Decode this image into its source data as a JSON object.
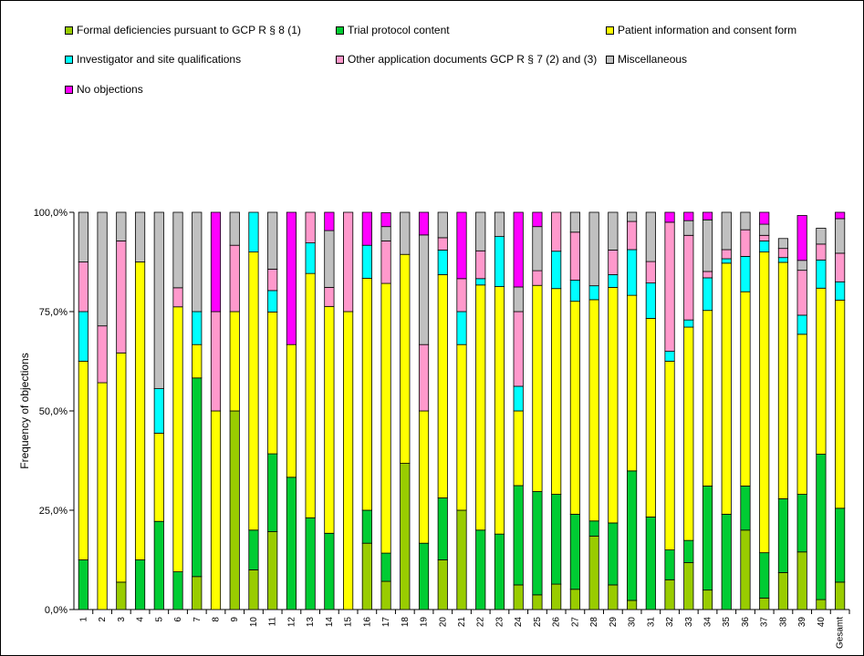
{
  "chart_data": {
    "type": "bar",
    "stacked": true,
    "normalized": true,
    "title": "",
    "xlabel": "",
    "ylabel": "Frequency of objections",
    "ylim": [
      0,
      100
    ],
    "yticks": [
      "0,0%",
      "25,0%",
      "50,0%",
      "75,0%",
      "100,0%"
    ],
    "legend_position": "top",
    "categories": [
      "1",
      "2",
      "3",
      "4",
      "5",
      "6",
      "7",
      "8",
      "9",
      "10",
      "11",
      "12",
      "13",
      "14",
      "15",
      "16",
      "17",
      "18",
      "19",
      "20",
      "21",
      "22",
      "23",
      "24",
      "25",
      "26",
      "27",
      "28",
      "29",
      "30",
      "31",
      "32",
      "33",
      "34",
      "35",
      "36",
      "37",
      "38",
      "39",
      "40",
      "Gesamt"
    ],
    "series": [
      {
        "name": "Formal deficiencies pursuant to GCP R § 8 (1)",
        "color": "#99CC00",
        "values": [
          0,
          0,
          6.9,
          0,
          0,
          0,
          8.3,
          0,
          50,
          10,
          19.6,
          0,
          0,
          0,
          0,
          16.7,
          7.1,
          36.8,
          0,
          12.5,
          25,
          0,
          0,
          6.2,
          3.7,
          6.4,
          5.1,
          18.5,
          6.2,
          2.3,
          0,
          7.5,
          11.8,
          4.9,
          0,
          20,
          2.9,
          9.3,
          14.5,
          2.5,
          6.9
        ]
      },
      {
        "name": "Trial protocol content",
        "color": "#00CC33",
        "values": [
          12.5,
          0,
          0,
          12.5,
          22.2,
          9.5,
          50,
          0,
          0,
          10,
          19.6,
          33.3,
          23.1,
          19.2,
          0,
          8.3,
          7.1,
          0,
          16.7,
          15.6,
          0,
          20,
          19,
          25,
          26,
          22.6,
          18.9,
          3.8,
          15.6,
          32.6,
          23.3,
          7.5,
          5.6,
          26.2,
          24,
          11.1,
          11.4,
          18.6,
          14.5,
          36.6,
          18.6
        ]
      },
      {
        "name": "Patient information and consent form",
        "color": "#FFFF00",
        "values": [
          50,
          57.1,
          57.7,
          75,
          22.2,
          66.7,
          8.4,
          50,
          25,
          70,
          35.7,
          33.4,
          61.5,
          57.1,
          75,
          58.4,
          67.9,
          52.6,
          33.3,
          56.2,
          41.7,
          61.7,
          62.3,
          18.8,
          51.9,
          51.8,
          53.6,
          55.7,
          59.3,
          44.2,
          50,
          47.5,
          53.7,
          44.2,
          63.2,
          48.9,
          75.7,
          59.5,
          40.3,
          41.8,
          52.4
        ]
      },
      {
        "name": "Investigator and site qualifications",
        "color": "#00FFFF",
        "values": [
          12.5,
          0,
          0,
          0,
          11.2,
          0,
          8.3,
          0,
          0,
          10,
          5.4,
          0,
          7.7,
          0,
          0,
          8.3,
          0,
          0,
          0,
          6.2,
          8.3,
          1.6,
          12.6,
          6.2,
          0,
          9.4,
          5.3,
          3.5,
          3.2,
          11.5,
          8.9,
          2.5,
          1.8,
          8.2,
          1.1,
          8.9,
          2.8,
          1.2,
          4.8,
          7.1,
          4.6
        ]
      },
      {
        "name": "Other application documents GCP R § 7 (2) and (3)",
        "color": "#FF99CC",
        "values": [
          12.5,
          14.3,
          28.2,
          0,
          0,
          4.8,
          0,
          25,
          16.7,
          0,
          5.4,
          0,
          7.7,
          4.8,
          25,
          0,
          10.7,
          0,
          16.7,
          3.1,
          8.3,
          7,
          0,
          18.8,
          3.7,
          9.8,
          12.1,
          0,
          6.2,
          7.1,
          5.4,
          32.5,
          21.3,
          1.6,
          2.3,
          6.7,
          1.4,
          2.3,
          11.3,
          4,
          7.2
        ]
      },
      {
        "name": "Miscellaneous",
        "color": "#C0C0C0",
        "values": [
          12.5,
          28.6,
          7.2,
          12.5,
          44.4,
          19,
          25,
          0,
          8.3,
          0,
          14.3,
          0,
          0,
          14.3,
          0,
          0,
          3.6,
          10.6,
          27.6,
          6.4,
          0,
          9.7,
          6.1,
          6.2,
          11.1,
          0,
          5,
          18.5,
          9.5,
          2.3,
          12.4,
          0,
          3.7,
          13,
          9.4,
          4.4,
          2.8,
          2.5,
          2.5,
          4,
          8.7
        ]
      },
      {
        "name": "No objections",
        "color": "#FF00FF",
        "values": [
          0,
          0,
          0,
          0,
          0,
          0,
          0,
          25,
          0,
          0,
          0,
          33.3,
          0,
          4.6,
          0,
          8.3,
          3.5,
          0,
          5.7,
          0,
          16.7,
          0,
          0,
          18.8,
          3.6,
          0,
          0,
          0,
          0,
          0,
          0,
          2.5,
          2.1,
          1.9,
          0,
          0,
          3,
          0,
          11.3,
          0,
          1.6
        ]
      }
    ]
  }
}
